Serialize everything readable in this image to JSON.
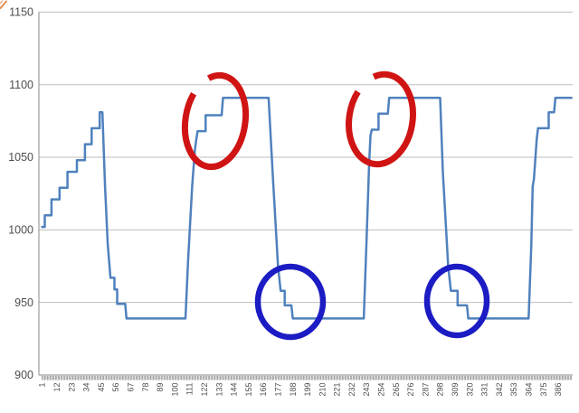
{
  "page": {
    "background_color": "#FFFFFF",
    "title": ""
  },
  "chart_data": {
    "type": "line",
    "title": "",
    "xlabel": "",
    "ylabel": "",
    "legend": "none",
    "grid": "horizontal",
    "x_axis": {
      "category_count": 396,
      "label_step": 11,
      "labels": [
        "1",
        "12",
        "23",
        "34",
        "45",
        "56",
        "67",
        "78",
        "89",
        "100",
        "111",
        "122",
        "133",
        "144",
        "155",
        "166",
        "177",
        "188",
        "199",
        "210",
        "221",
        "232",
        "243",
        "254",
        "265",
        "276",
        "287",
        "298",
        "309",
        "320",
        "331",
        "342",
        "353",
        "364",
        "375",
        "386"
      ],
      "label_rotation_deg": -90,
      "tick_color": "#7F7F7F",
      "label_color": "#4D4D4D"
    },
    "y_axis": {
      "min": 900,
      "max": 1150,
      "ticks": [
        900,
        950,
        1000,
        1050,
        1100,
        1150
      ],
      "label_color": "#4D4D4D"
    },
    "gridline_color": "#BDBDBD",
    "axis_line_color": "#9C9C9C",
    "series": [
      {
        "name": "stepped-cycle-series",
        "color": "#4F81BD",
        "points": [
          [
            1,
            1002
          ],
          [
            3,
            1002
          ],
          [
            3,
            1010
          ],
          [
            8,
            1010
          ],
          [
            8,
            1021
          ],
          [
            14,
            1021
          ],
          [
            14,
            1029
          ],
          [
            20,
            1029
          ],
          [
            20,
            1040
          ],
          [
            27,
            1040
          ],
          [
            27,
            1048
          ],
          [
            33,
            1048
          ],
          [
            33,
            1059
          ],
          [
            38,
            1059
          ],
          [
            38,
            1070
          ],
          [
            44,
            1070
          ],
          [
            44,
            1081
          ],
          [
            46,
            1081
          ],
          [
            48,
            1030
          ],
          [
            50,
            990
          ],
          [
            52,
            967
          ],
          [
            55,
            967
          ],
          [
            55,
            959
          ],
          [
            57,
            959
          ],
          [
            57,
            949
          ],
          [
            63,
            949
          ],
          [
            64,
            939
          ],
          [
            108,
            939
          ],
          [
            110,
            980
          ],
          [
            113,
            1030
          ],
          [
            115,
            1055
          ],
          [
            116,
            1062
          ],
          [
            117,
            1068
          ],
          [
            123,
            1068
          ],
          [
            123,
            1079
          ],
          [
            135,
            1079
          ],
          [
            136,
            1091
          ],
          [
            170,
            1091
          ],
          [
            173,
            1040
          ],
          [
            177,
            975
          ],
          [
            179,
            958
          ],
          [
            182,
            958
          ],
          [
            182,
            948
          ],
          [
            187,
            948
          ],
          [
            188,
            939
          ],
          [
            241,
            939
          ],
          [
            243,
            990
          ],
          [
            245,
            1045
          ],
          [
            246,
            1065
          ],
          [
            247,
            1069
          ],
          [
            252,
            1069
          ],
          [
            252,
            1080
          ],
          [
            259,
            1080
          ],
          [
            260,
            1091
          ],
          [
            298,
            1091
          ],
          [
            300,
            1040
          ],
          [
            304,
            975
          ],
          [
            306,
            958
          ],
          [
            311,
            958
          ],
          [
            311,
            948
          ],
          [
            318,
            948
          ],
          [
            319,
            939
          ],
          [
            364,
            939
          ],
          [
            366,
            990
          ],
          [
            367,
            1030
          ],
          [
            368,
            1035
          ],
          [
            370,
            1062
          ],
          [
            371,
            1070
          ],
          [
            379,
            1070
          ],
          [
            379,
            1081
          ],
          [
            383,
            1081
          ],
          [
            384,
            1091
          ],
          [
            396,
            1091
          ]
        ]
      }
    ],
    "annotations": [
      {
        "name": "red-ellipse-1",
        "shape": "ellipse",
        "color": "#D01414",
        "cx": 238,
        "cy": 134,
        "rx": 33,
        "ry": 51,
        "rotation": 9,
        "stroke_width": 7,
        "gap": true
      },
      {
        "name": "red-ellipse-2",
        "shape": "ellipse",
        "color": "#D01414",
        "cx": 421,
        "cy": 132,
        "rx": 35,
        "ry": 50,
        "rotation": 9,
        "stroke_width": 7,
        "gap": true
      },
      {
        "name": "blue-ellipse-1",
        "shape": "ellipse",
        "color": "#1C1CC4",
        "cx": 321,
        "cy": 334,
        "rx": 36,
        "ry": 39,
        "rotation": 0,
        "stroke_width": 6.5,
        "gap": false
      },
      {
        "name": "blue-ellipse-2",
        "shape": "ellipse",
        "color": "#1C1CC4",
        "cx": 505,
        "cy": 333,
        "rx": 33,
        "ry": 38,
        "rotation": 0,
        "stroke_width": 6.5,
        "gap": false
      }
    ],
    "corner_mark": {
      "color": "#E0792F"
    }
  }
}
